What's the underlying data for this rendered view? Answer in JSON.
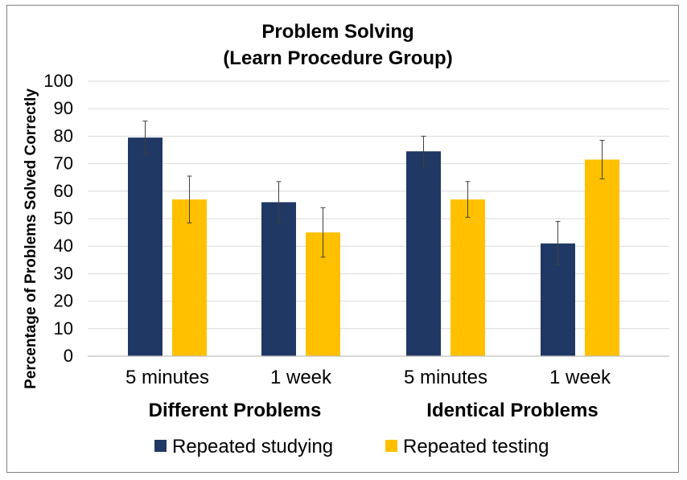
{
  "chart_data": {
    "type": "bar",
    "title_line1": "Problem Solving",
    "title_line2": "(Learn Procedure Group)",
    "ylabel": "Percentage of Problems Solved Correctly",
    "ylim": [
      0,
      100
    ],
    "yticks": [
      "0",
      "10",
      "20",
      "30",
      "40",
      "50",
      "60",
      "70",
      "80",
      "90",
      "100"
    ],
    "grid": true,
    "categories": [
      "5 minutes",
      "1 week",
      "5 minutes",
      "1 week"
    ],
    "groups": [
      "Different Problems",
      "Identical Problems"
    ],
    "series": [
      {
        "name": "Repeated studying",
        "color": "#203864",
        "values": [
          79.5,
          56,
          74.5,
          41
        ],
        "err_low": [
          73.5,
          48.5,
          69,
          33.5
        ],
        "err_high": [
          85.5,
          63.5,
          80,
          49
        ]
      },
      {
        "name": "Repeated testing",
        "color": "#FFC000",
        "values": [
          57,
          45,
          57,
          71.5
        ],
        "err_low": [
          48.5,
          36,
          50.5,
          64.5
        ],
        "err_high": [
          65.5,
          54,
          63.5,
          78.5
        ]
      }
    ],
    "legend_position": "bottom"
  }
}
